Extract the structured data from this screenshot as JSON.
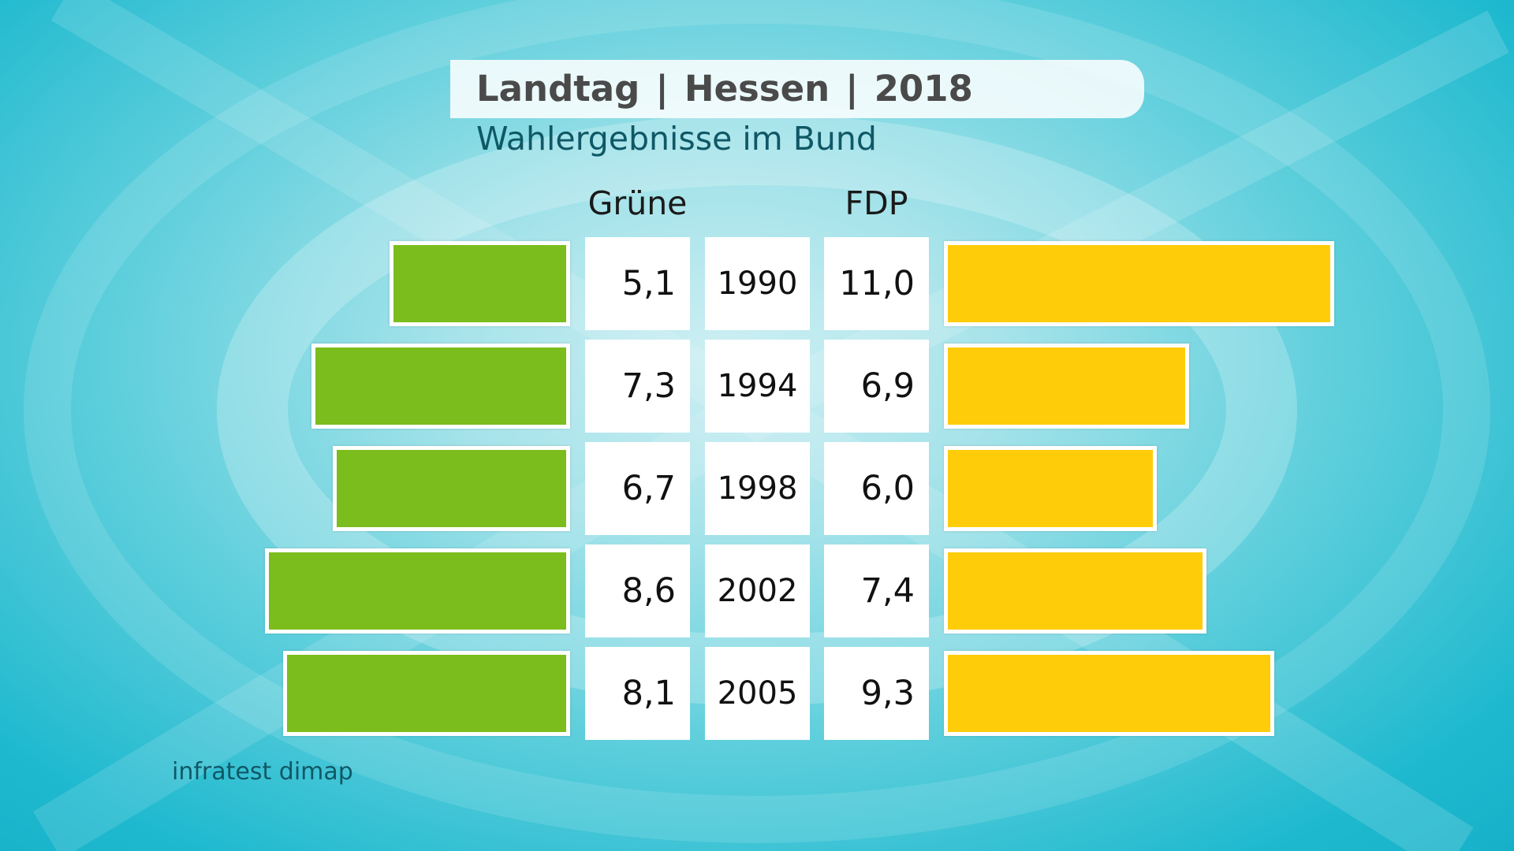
{
  "header": {
    "title_parts": [
      "Landtag",
      "Hessen",
      "2018"
    ],
    "separator": "|",
    "subtitle": "Wahlergebnisse im Bund"
  },
  "source": "infratest dimap",
  "colors": {
    "gruene": "#7bbd1c",
    "fdp": "#ffcc0a"
  },
  "chart_data": {
    "type": "bar",
    "orientation": "horizontal-butterfly",
    "title": "Landtag | Hessen | 2018",
    "subtitle": "Wahlergebnisse im Bund",
    "categories": [
      "1990",
      "1994",
      "1998",
      "2002",
      "2005"
    ],
    "series": [
      {
        "name": "Grüne",
        "values": [
          5.1,
          7.3,
          6.7,
          8.6,
          8.1
        ],
        "labels": [
          "5,1",
          "7,3",
          "6,7",
          "8,6",
          "8,1"
        ],
        "color": "#7bbd1c",
        "side": "left"
      },
      {
        "name": "FDP",
        "values": [
          11.0,
          6.9,
          6.0,
          7.4,
          9.3
        ],
        "labels": [
          "11,0",
          "6,9",
          "6,0",
          "7,4",
          "9,3"
        ],
        "color": "#ffcc0a",
        "side": "right"
      }
    ],
    "legend": "column headers above value cells",
    "grid": false
  }
}
